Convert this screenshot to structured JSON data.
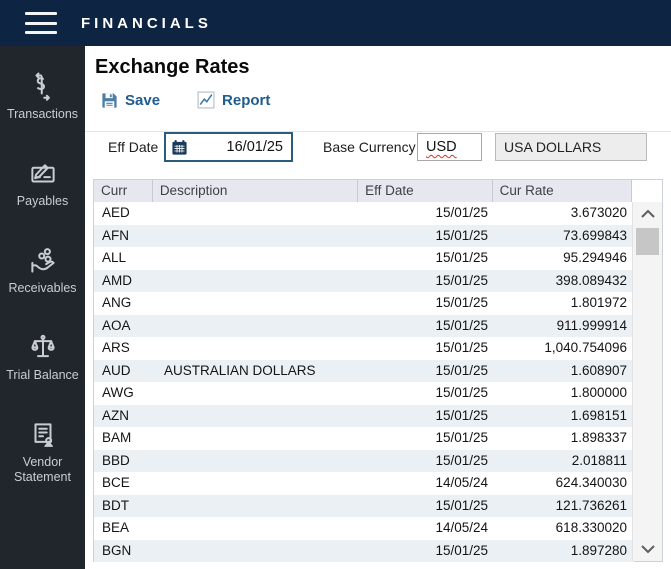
{
  "topbar": {
    "title": "FINANCIALS"
  },
  "sidebar": {
    "items": [
      {
        "label": "Transactions",
        "icon": "money-transfer-icon"
      },
      {
        "label": "Payables",
        "icon": "check-pen-icon"
      },
      {
        "label": "Receivables",
        "icon": "hand-coins-icon"
      },
      {
        "label": "Trial Balance",
        "icon": "scales-icon"
      },
      {
        "label": "Vendor Statement",
        "icon": "document-person-icon"
      }
    ]
  },
  "page": {
    "title": "Exchange Rates"
  },
  "toolbar": {
    "save_label": "Save",
    "report_label": "Report"
  },
  "form": {
    "eff_date_label": "Eff Date",
    "eff_date_value": "16/01/25",
    "base_currency_label": "Base Currency",
    "base_currency_code": "USD",
    "base_currency_name": "USA DOLLARS"
  },
  "table": {
    "columns": [
      "Curr",
      "Description",
      "Eff Date",
      "Cur Rate"
    ],
    "rows": [
      {
        "curr": "AED",
        "desc": "",
        "date": "15/01/25",
        "rate": "3.673020"
      },
      {
        "curr": "AFN",
        "desc": "",
        "date": "15/01/25",
        "rate": "73.699843"
      },
      {
        "curr": "ALL",
        "desc": "",
        "date": "15/01/25",
        "rate": "95.294946"
      },
      {
        "curr": "AMD",
        "desc": "",
        "date": "15/01/25",
        "rate": "398.089432"
      },
      {
        "curr": "ANG",
        "desc": "",
        "date": "15/01/25",
        "rate": "1.801972"
      },
      {
        "curr": "AOA",
        "desc": "",
        "date": "15/01/25",
        "rate": "911.999914"
      },
      {
        "curr": "ARS",
        "desc": "",
        "date": "15/01/25",
        "rate": "1,040.754096"
      },
      {
        "curr": "AUD",
        "desc": "AUSTRALIAN DOLLARS",
        "date": "15/01/25",
        "rate": "1.608907"
      },
      {
        "curr": "AWG",
        "desc": "",
        "date": "15/01/25",
        "rate": "1.800000"
      },
      {
        "curr": "AZN",
        "desc": "",
        "date": "15/01/25",
        "rate": "1.698151"
      },
      {
        "curr": "BAM",
        "desc": "",
        "date": "15/01/25",
        "rate": "1.898337"
      },
      {
        "curr": "BBD",
        "desc": "",
        "date": "15/01/25",
        "rate": "2.018811"
      },
      {
        "curr": "BCE",
        "desc": "",
        "date": "14/05/24",
        "rate": "624.340030"
      },
      {
        "curr": "BDT",
        "desc": "",
        "date": "15/01/25",
        "rate": "121.736261"
      },
      {
        "curr": "BEA",
        "desc": "",
        "date": "14/05/24",
        "rate": "618.330020"
      },
      {
        "curr": "BGN",
        "desc": "",
        "date": "15/01/25",
        "rate": "1.897280"
      }
    ]
  },
  "colors": {
    "topbar_bg": "#0d2543",
    "sidebar_bg": "#21262c",
    "accent_blue": "#1f5d8f",
    "date_border": "#2b5c7a",
    "header_bg": "#e7e7f0",
    "alt_row_bg": "#ebf0f4",
    "spellcheck_red": "#d93025"
  }
}
